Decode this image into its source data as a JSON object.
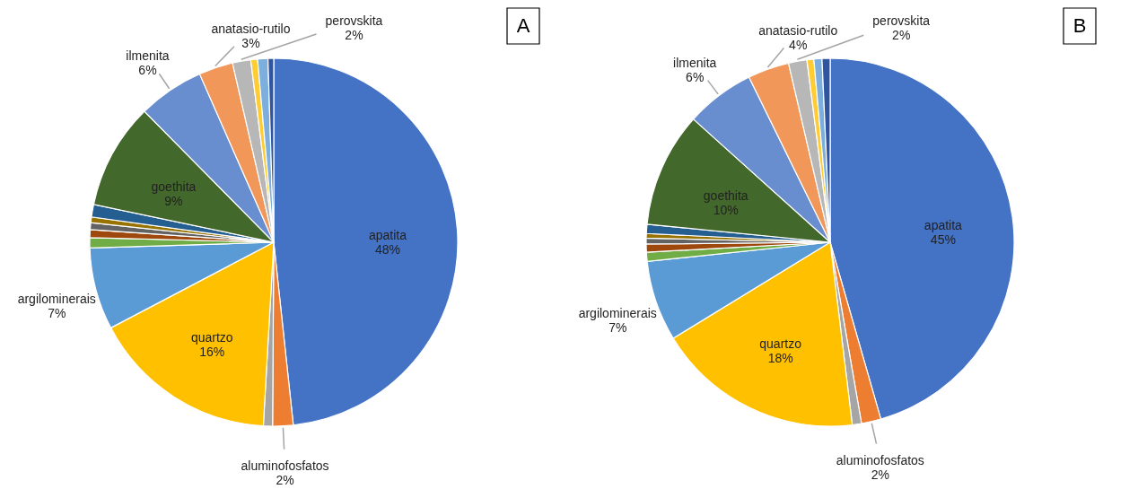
{
  "chart_data": [
    {
      "type": "pie",
      "categories": [
        "apatita",
        "aluminofosfatos",
        null,
        "quartzo",
        "argilominerais",
        null,
        null,
        null,
        null,
        null,
        "goethita",
        "ilmenita",
        "anatasio-rutilo",
        "perovskita",
        null,
        null,
        null
      ],
      "values": [
        48.3,
        1.8,
        0.8,
        16.4,
        7.2,
        0.9,
        0.7,
        0.6,
        0.5,
        1.1,
        9.3,
        5.8,
        3.0,
        1.6,
        0.6,
        0.9,
        0.5
      ],
      "value_labels": [
        "48%",
        "2%",
        null,
        "16%",
        "7%",
        null,
        null,
        null,
        null,
        null,
        "9%",
        "6%",
        "3%",
        "2%",
        null,
        null,
        null
      ],
      "colors": [
        "#4472c4",
        "#ed7d31",
        "#a5a5a5",
        "#ffc000",
        "#5b9bd5",
        "#70ad47",
        "#9e480e",
        "#636363",
        "#997300",
        "#255e91",
        "#43682b",
        "#698ed0",
        "#f1975a",
        "#b7b7b7",
        "#ffcd33",
        "#7cafdd",
        "#2f55a0"
      ],
      "annotations": [
        "A"
      ]
    },
    {
      "type": "pie",
      "categories": [
        "apatita",
        "aluminofosfatos",
        null,
        "quartzo",
        "argilominerais",
        null,
        null,
        null,
        null,
        null,
        "goethita",
        "ilmenita",
        "anatasio-rutilo",
        "perovskita",
        null,
        null,
        null
      ],
      "values": [
        45.1,
        1.7,
        0.8,
        18.0,
        7.0,
        0.8,
        0.7,
        0.5,
        0.4,
        0.8,
        10.0,
        6.0,
        3.6,
        1.6,
        0.6,
        0.7,
        0.7
      ],
      "value_labels": [
        "45%",
        "2%",
        null,
        "18%",
        "7%",
        null,
        null,
        null,
        null,
        null,
        "10%",
        "6%",
        "4%",
        "2%",
        null,
        null,
        null
      ],
      "colors": [
        "#4472c4",
        "#ed7d31",
        "#a5a5a5",
        "#ffc000",
        "#5b9bd5",
        "#70ad47",
        "#9e480e",
        "#636363",
        "#997300",
        "#255e91",
        "#43682b",
        "#698ed0",
        "#f1975a",
        "#b7b7b7",
        "#ffcd33",
        "#7cafdd",
        "#2f55a0"
      ],
      "annotations": [
        "B"
      ]
    }
  ]
}
